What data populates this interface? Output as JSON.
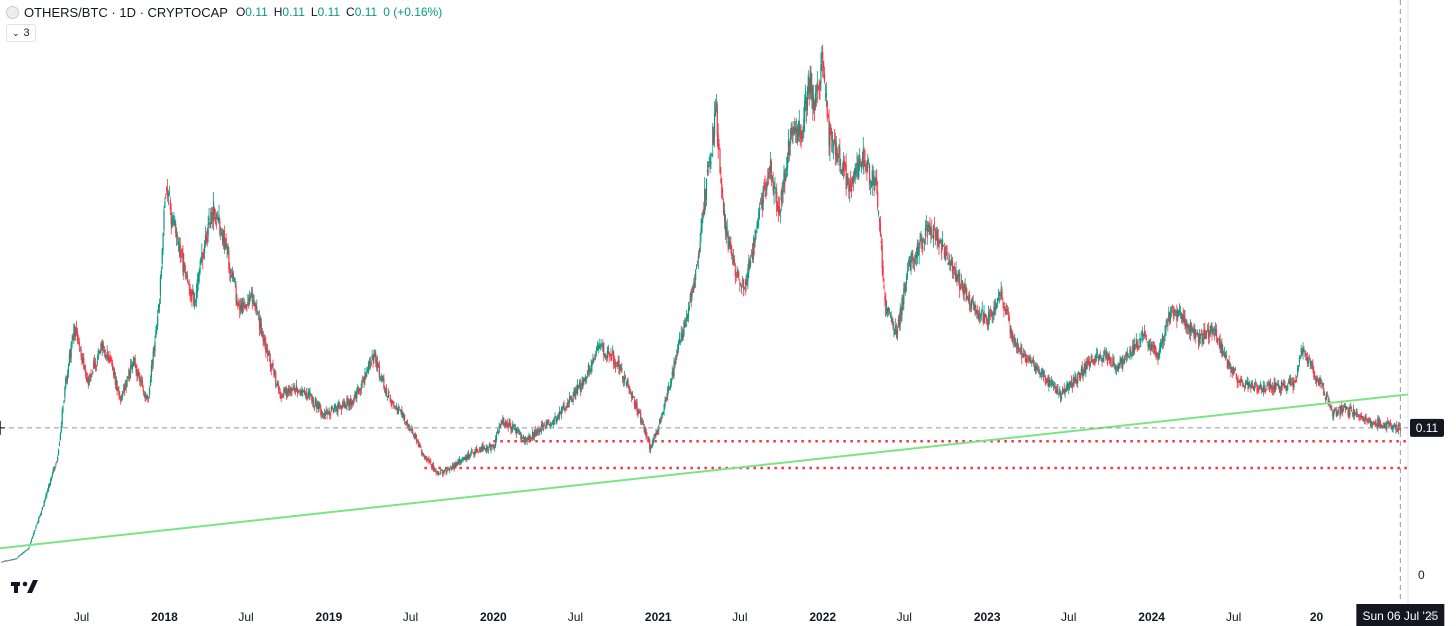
{
  "legend": {
    "symbol_title": "OTHERS/BTC · 1D · CRYPTOCAP",
    "open_label": "O",
    "open_value": "0.11",
    "high_label": "H",
    "high_value": "0.11",
    "low_label": "L",
    "low_value": "0.11",
    "close_label": "C",
    "close_value": "0.11",
    "change": "0 (+0.16%)",
    "indicators_count": "3"
  },
  "colors": {
    "up": "#089981",
    "down": "#f23645",
    "trendline": "#7ae582",
    "support_lines": "#f23645",
    "crosshair": "#9598a1"
  },
  "chart_data": {
    "type": "candlestick",
    "symbol": "OTHERS/BTC",
    "interval": "1D",
    "exchange": "CRYPTOCAP",
    "x_tick_labels": [
      "Jul",
      "2018",
      "Jul",
      "2019",
      "Jul",
      "2020",
      "Jul",
      "2021",
      "Jul",
      "2022",
      "Jul",
      "2023",
      "Jul",
      "2024",
      "Jul",
      "20"
    ],
    "x_ticks": [
      "2017-07-01",
      "2018-01-01",
      "2018-07-01",
      "2019-01-01",
      "2019-07-01",
      "2020-01-01",
      "2020-07-01",
      "2021-01-01",
      "2021-07-01",
      "2022-01-01",
      "2022-07-01",
      "2023-01-01",
      "2023-07-01",
      "2024-01-01",
      "2024-07-01",
      "2025-01-01"
    ],
    "y_tick_labels": [
      "0"
    ],
    "ylim": [
      0,
      0.4
    ],
    "xlim": [
      "2017-01-01",
      "2025-07-23"
    ],
    "last_price_label": "0.11",
    "last_price": 0.11,
    "crosshair_date_label": "Sun 06 Jul '25",
    "crosshair_date": "2025-07-06",
    "close_path": [
      [
        "2017-01-05",
        0.01
      ],
      [
        "2017-02-05",
        0.012
      ],
      [
        "2017-03-05",
        0.02
      ],
      [
        "2017-04-05",
        0.05
      ],
      [
        "2017-05-10",
        0.09
      ],
      [
        "2017-05-25",
        0.14
      ],
      [
        "2017-06-15",
        0.185
      ],
      [
        "2017-07-15",
        0.145
      ],
      [
        "2017-08-15",
        0.17
      ],
      [
        "2017-09-05",
        0.16
      ],
      [
        "2017-09-25",
        0.13
      ],
      [
        "2017-10-25",
        0.16
      ],
      [
        "2017-11-25",
        0.13
      ],
      [
        "2017-12-20",
        0.2
      ],
      [
        "2018-01-05",
        0.295
      ],
      [
        "2018-01-15",
        0.27
      ],
      [
        "2018-02-05",
        0.24
      ],
      [
        "2018-03-10",
        0.205
      ],
      [
        "2018-04-01",
        0.25
      ],
      [
        "2018-04-20",
        0.275
      ],
      [
        "2018-05-15",
        0.25
      ],
      [
        "2018-06-15",
        0.2
      ],
      [
        "2018-07-15",
        0.21
      ],
      [
        "2018-08-15",
        0.17
      ],
      [
        "2018-09-15",
        0.135
      ],
      [
        "2018-10-15",
        0.14
      ],
      [
        "2018-11-20",
        0.135
      ],
      [
        "2018-12-20",
        0.12
      ],
      [
        "2019-01-20",
        0.125
      ],
      [
        "2019-02-20",
        0.13
      ],
      [
        "2019-03-20",
        0.145
      ],
      [
        "2019-04-10",
        0.165
      ],
      [
        "2019-05-10",
        0.135
      ],
      [
        "2019-06-10",
        0.12
      ],
      [
        "2019-07-05",
        0.108
      ],
      [
        "2019-08-01",
        0.088
      ],
      [
        "2019-09-01",
        0.076
      ],
      [
        "2019-10-01",
        0.08
      ],
      [
        "2019-11-01",
        0.088
      ],
      [
        "2019-12-01",
        0.095
      ],
      [
        "2020-01-01",
        0.095
      ],
      [
        "2020-01-20",
        0.115
      ],
      [
        "2020-02-15",
        0.11
      ],
      [
        "2020-03-15",
        0.1
      ],
      [
        "2020-04-15",
        0.11
      ],
      [
        "2020-05-15",
        0.115
      ],
      [
        "2020-06-15",
        0.13
      ],
      [
        "2020-07-20",
        0.145
      ],
      [
        "2020-08-20",
        0.17
      ],
      [
        "2020-09-20",
        0.165
      ],
      [
        "2020-10-20",
        0.145
      ],
      [
        "2020-11-15",
        0.125
      ],
      [
        "2020-12-15",
        0.095
      ],
      [
        "2021-01-05",
        0.115
      ],
      [
        "2021-01-25",
        0.14
      ],
      [
        "2021-02-15",
        0.17
      ],
      [
        "2021-03-10",
        0.2
      ],
      [
        "2021-04-01",
        0.24
      ],
      [
        "2021-04-20",
        0.3
      ],
      [
        "2021-05-10",
        0.345
      ],
      [
        "2021-05-25",
        0.27
      ],
      [
        "2021-06-15",
        0.235
      ],
      [
        "2021-07-10",
        0.215
      ],
      [
        "2021-08-10",
        0.26
      ],
      [
        "2021-09-05",
        0.31
      ],
      [
        "2021-09-25",
        0.27
      ],
      [
        "2021-10-25",
        0.335
      ],
      [
        "2021-11-15",
        0.33
      ],
      [
        "2021-12-01",
        0.37
      ],
      [
        "2021-12-15",
        0.35
      ],
      [
        "2022-01-01",
        0.385
      ],
      [
        "2022-01-15",
        0.33
      ],
      [
        "2022-02-10",
        0.31
      ],
      [
        "2022-03-01",
        0.29
      ],
      [
        "2022-04-01",
        0.31
      ],
      [
        "2022-05-01",
        0.29
      ],
      [
        "2022-05-20",
        0.2
      ],
      [
        "2022-06-15",
        0.18
      ],
      [
        "2022-07-10",
        0.23
      ],
      [
        "2022-08-10",
        0.25
      ],
      [
        "2022-09-01",
        0.26
      ],
      [
        "2022-10-01",
        0.24
      ],
      [
        "2022-11-01",
        0.22
      ],
      [
        "2022-12-01",
        0.2
      ],
      [
        "2023-01-01",
        0.19
      ],
      [
        "2023-02-01",
        0.21
      ],
      [
        "2023-03-01",
        0.175
      ],
      [
        "2023-04-01",
        0.16
      ],
      [
        "2023-05-01",
        0.15
      ],
      [
        "2023-06-15",
        0.135
      ],
      [
        "2023-07-15",
        0.145
      ],
      [
        "2023-08-15",
        0.16
      ],
      [
        "2023-09-15",
        0.165
      ],
      [
        "2023-10-15",
        0.155
      ],
      [
        "2023-11-15",
        0.165
      ],
      [
        "2023-12-15",
        0.18
      ],
      [
        "2024-01-15",
        0.165
      ],
      [
        "2024-02-15",
        0.2
      ],
      [
        "2024-03-15",
        0.19
      ],
      [
        "2024-04-15",
        0.175
      ],
      [
        "2024-05-15",
        0.185
      ],
      [
        "2024-06-15",
        0.16
      ],
      [
        "2024-07-15",
        0.145
      ],
      [
        "2024-08-15",
        0.14
      ],
      [
        "2024-09-15",
        0.14
      ],
      [
        "2024-10-15",
        0.14
      ],
      [
        "2024-11-15",
        0.145
      ],
      [
        "2024-12-01",
        0.17
      ],
      [
        "2024-12-20",
        0.155
      ],
      [
        "2025-01-15",
        0.14
      ],
      [
        "2025-02-05",
        0.12
      ],
      [
        "2025-03-01",
        0.125
      ],
      [
        "2025-04-01",
        0.12
      ],
      [
        "2025-05-01",
        0.115
      ],
      [
        "2025-06-01",
        0.112
      ],
      [
        "2025-07-06",
        0.11
      ]
    ],
    "trendline": {
      "from": [
        "2017-01-01",
        0.02
      ],
      "to": [
        "2025-07-23",
        0.135
      ]
    },
    "support_levels": [
      {
        "value": 0.1,
        "from": "2020-01-01",
        "to": "2025-07-23"
      },
      {
        "value": 0.08,
        "from": "2019-08-01",
        "to": "2025-07-23"
      }
    ]
  }
}
